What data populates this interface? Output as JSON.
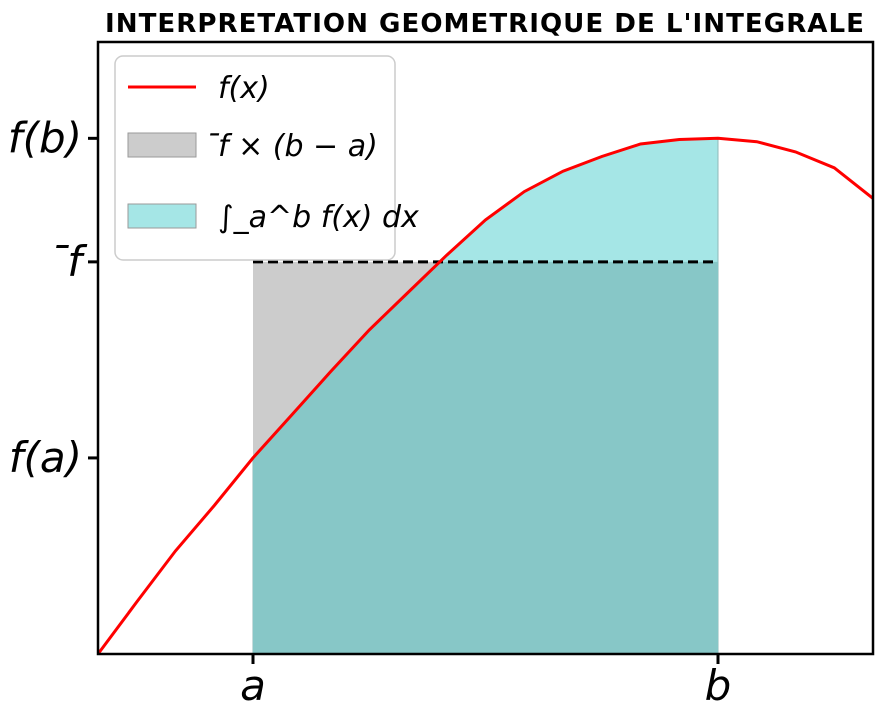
{
  "chart_data": {
    "type": "area",
    "title": "INTERPRETATION GEOMETRIQUE DE L'INTEGRALE",
    "xlabel": "",
    "ylabel": "",
    "x_ticks": [
      "a",
      "b"
    ],
    "y_ticks": [
      "f(a)",
      "̄f",
      "f(b)"
    ],
    "legend": {
      "placement": "top-left",
      "entries": [
        {
          "label": "f(x)",
          "kind": "line",
          "color": "#ff0000"
        },
        {
          "label": "̄f × (b − a)",
          "kind": "area",
          "color": "#cccccc"
        },
        {
          "label": "∫_a^b f(x) dx",
          "kind": "area",
          "color": "#a5e6e6"
        }
      ]
    },
    "curve_name": "f(x)",
    "a": 1.0,
    "b": 4.0,
    "f_bar": 3.46,
    "xlim": [
      0.0,
      5.0
    ],
    "ylim": [
      0.0,
      5.4
    ],
    "curve": [
      [
        0.0,
        0.0
      ],
      [
        0.25,
        0.46
      ],
      [
        0.5,
        0.91
      ],
      [
        0.75,
        1.31
      ],
      [
        1.0,
        1.73
      ],
      [
        1.25,
        2.11
      ],
      [
        1.5,
        2.49
      ],
      [
        1.75,
        2.86
      ],
      [
        2.0,
        3.19
      ],
      [
        2.25,
        3.52
      ],
      [
        2.5,
        3.83
      ],
      [
        2.75,
        4.08
      ],
      [
        3.0,
        4.26
      ],
      [
        3.25,
        4.39
      ],
      [
        3.5,
        4.5
      ],
      [
        3.75,
        4.54
      ],
      [
        4.0,
        4.55
      ],
      [
        4.25,
        4.52
      ],
      [
        4.5,
        4.43
      ],
      [
        4.75,
        4.29
      ],
      [
        5.0,
        4.02
      ]
    ],
    "colors": {
      "curve": "#ff0000",
      "rectangle": "#cccccc",
      "integral": "#a5e6e6",
      "overlap": "#87c7c7",
      "mean_line": "#000000"
    },
    "grid": false
  }
}
